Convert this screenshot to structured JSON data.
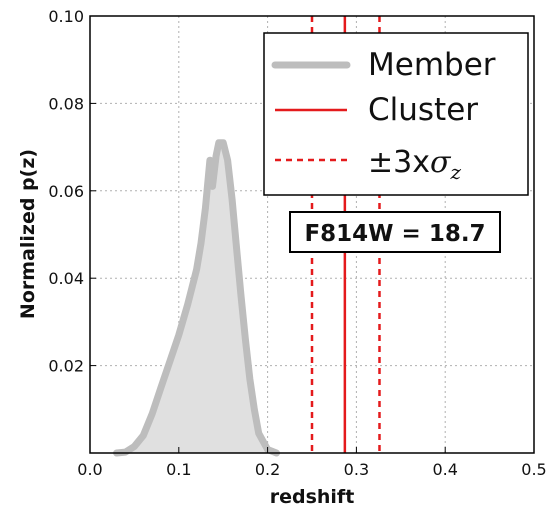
{
  "chart_data": {
    "type": "area",
    "xlabel": "redshift",
    "ylabel": "Normalized p(z)",
    "xlim": [
      0.0,
      0.5
    ],
    "ylim": [
      0.0,
      0.1
    ],
    "xticks": [
      0.0,
      0.1,
      0.2,
      0.3,
      0.4,
      0.5
    ],
    "yticks": [
      0.02,
      0.04,
      0.06,
      0.08,
      0.1
    ],
    "xtick_labels": [
      "0.0",
      "0.1",
      "0.2",
      "0.3",
      "0.4",
      "0.5"
    ],
    "ytick_labels": [
      "0.02",
      "0.04",
      "0.06",
      "0.08",
      "0.10"
    ],
    "grid": true,
    "series": [
      {
        "name": "Member",
        "color": "#bdbdbd",
        "fill": "#e0e0e0",
        "x": [
          0.03,
          0.04,
          0.05,
          0.06,
          0.07,
          0.08,
          0.09,
          0.1,
          0.11,
          0.12,
          0.125,
          0.13,
          0.135,
          0.138,
          0.142,
          0.145,
          0.15,
          0.155,
          0.16,
          0.165,
          0.17,
          0.175,
          0.18,
          0.185,
          0.19,
          0.2,
          0.21
        ],
        "y": [
          0.0,
          0.0002,
          0.0015,
          0.004,
          0.009,
          0.015,
          0.021,
          0.027,
          0.034,
          0.042,
          0.048,
          0.056,
          0.067,
          0.061,
          0.068,
          0.071,
          0.071,
          0.067,
          0.058,
          0.047,
          0.036,
          0.026,
          0.017,
          0.01,
          0.0045,
          0.0008,
          0.0
        ]
      }
    ],
    "vlines": [
      {
        "name": "Cluster",
        "x": 0.287,
        "color": "#e41a1c",
        "style": "solid"
      },
      {
        "name": "±3xσ_z",
        "x": 0.25,
        "color": "#e41a1c",
        "style": "dashed"
      },
      {
        "name": "±3xσ_z",
        "x": 0.326,
        "color": "#e41a1c",
        "style": "dashed"
      }
    ],
    "legend": {
      "placement": "top-right",
      "entries": [
        {
          "label": "Member",
          "style": "thick-gray"
        },
        {
          "label": "Cluster",
          "style": "solid-red"
        },
        {
          "label": "±3x",
          "symbol": "σ",
          "subscript": "z",
          "style": "dashed-red"
        }
      ]
    },
    "annotation": "F814W = 18.7"
  }
}
